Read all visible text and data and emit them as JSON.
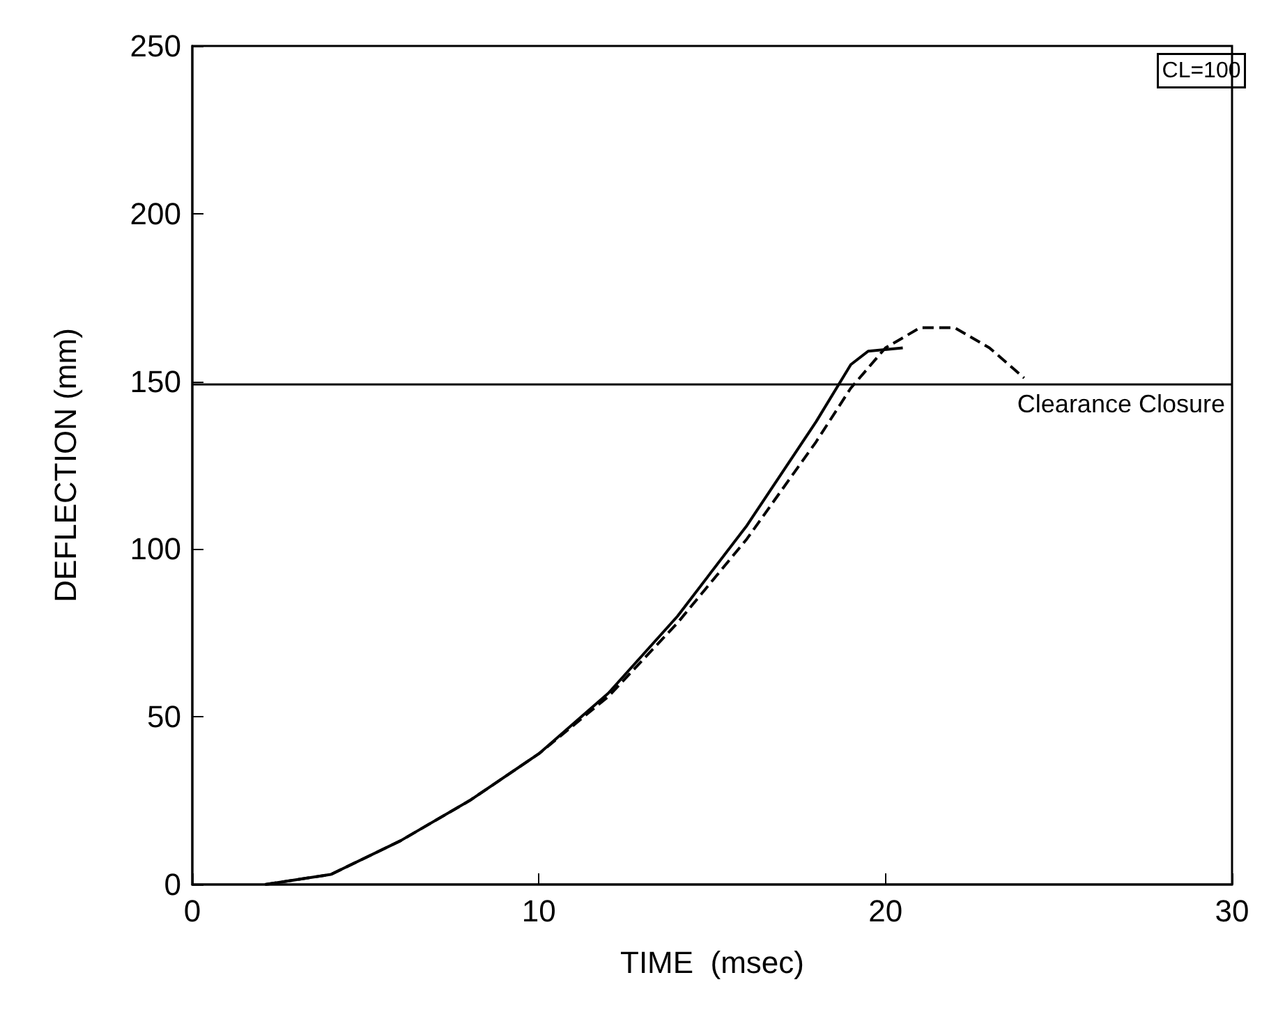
{
  "chart_data": {
    "type": "line",
    "xlabel": "TIME  (msec)",
    "ylabel": "DEFLECTION (mm)",
    "xlim": [
      0,
      30
    ],
    "ylim": [
      0,
      250
    ],
    "xticks": [
      0,
      10,
      20,
      30
    ],
    "yticks": [
      0,
      50,
      100,
      150,
      200,
      250
    ],
    "grid": false,
    "marker": "none",
    "annotations": [
      "CL=100"
    ],
    "ref_lines": [
      {
        "axis": "y",
        "value": 149,
        "label": "Clearance Closure",
        "color": "#000000"
      }
    ],
    "series": [
      {
        "color": "#000000",
        "line_style": "solid",
        "x": [
          2.1,
          4,
          6,
          8,
          10,
          12,
          14,
          16,
          18,
          19,
          19.5,
          20.5
        ],
        "values": [
          0,
          3,
          13,
          25,
          39,
          57,
          80,
          107,
          138,
          155,
          159,
          160
        ]
      },
      {
        "color": "#000000",
        "line_style": "dashed",
        "x": [
          2.1,
          4,
          6,
          8,
          10,
          12,
          14,
          16,
          18,
          19,
          20,
          21,
          22,
          23,
          24
        ],
        "values": [
          0,
          3,
          13,
          25,
          39,
          56,
          78,
          103,
          132,
          148,
          160,
          166,
          166,
          160,
          151
        ]
      }
    ]
  }
}
